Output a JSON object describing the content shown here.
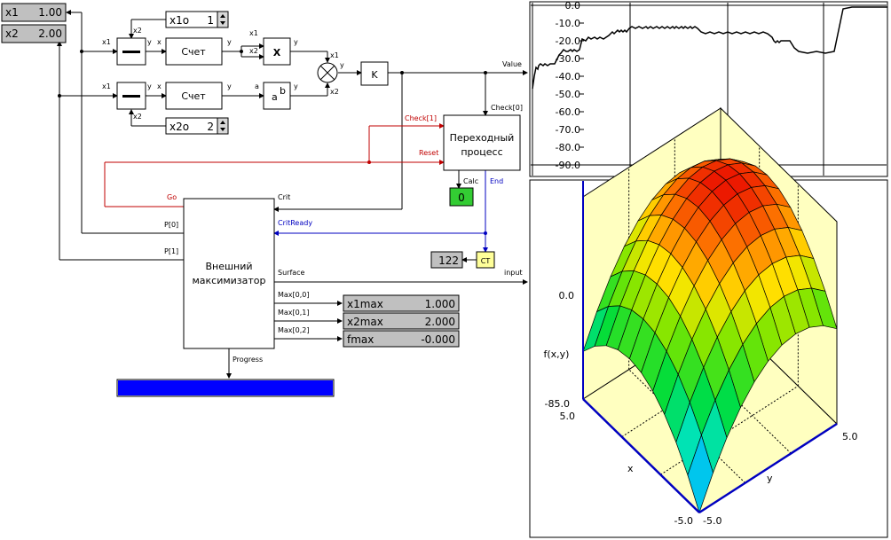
{
  "inputs": [
    {
      "name": "x1",
      "value": "1.00"
    },
    {
      "name": "x2",
      "value": "2.00"
    }
  ],
  "spinners": [
    {
      "name": "x1o",
      "value": "1"
    },
    {
      "name": "x2o",
      "value": "2"
    }
  ],
  "blocks": {
    "count1": "Счет",
    "count2": "Счет",
    "mult": "X",
    "power_base": "a",
    "power_exp": "b",
    "gain": "K",
    "transient_line1": "Переходный",
    "transient_line2": "процесс",
    "maximizer_line1": "Внешний",
    "maximizer_line2": "максимизатор",
    "counter": "CT"
  },
  "ports": {
    "x1": "x1",
    "x2": "x2",
    "x": "x",
    "y": "y",
    "a": "a",
    "value": "Value",
    "check0": "Check[0]",
    "check1": "Check[1]",
    "reset": "Reset",
    "calc": "Calc",
    "end": "End",
    "go": "Go",
    "crit": "Crit",
    "critready": "CritReady",
    "p0": "P[0]",
    "p1": "P[1]",
    "surface": "Surface",
    "input": "input",
    "max00": "Max[0,0]",
    "max01": "Max[0,1]",
    "max02": "Max[0,2]",
    "progress": "Progress"
  },
  "displays": {
    "calc_value": "0",
    "counter_value": "122",
    "x1max_label": "x1max",
    "x1max_value": "1.000",
    "x2max_label": "x2max",
    "x2max_value": "2.000",
    "fmax_label": "fmax",
    "fmax_value": "-0.000"
  },
  "progress": {
    "fraction": 1.0,
    "color": "#0000ff"
  },
  "colors": {
    "red_wire": "#c00000",
    "blue_wire": "#0000c0",
    "display_bg": "#c0c0c0",
    "lamp_green": "#33cc33",
    "counter_yellow": "#ffff99"
  },
  "chart_data": [
    {
      "type": "line",
      "title": "",
      "xlabel": "",
      "ylabel": "",
      "ylim": [
        -90,
        0
      ],
      "y_ticks": [
        "0.0",
        "-10.0",
        "-20.0",
        "-30.0",
        "-40.0",
        "-50.0",
        "-60.0",
        "-70.0",
        "-80.0",
        "-90.0"
      ],
      "grid": true,
      "x": [
        0,
        2,
        4,
        6,
        7,
        9,
        12,
        14,
        17,
        20,
        25,
        30,
        32,
        35,
        38,
        40,
        43,
        45,
        47,
        50,
        53,
        56,
        60,
        63,
        66,
        70,
        73,
        76,
        80,
        83,
        86,
        90,
        92,
        94,
        96,
        98,
        100,
        102,
        104,
        106,
        109,
        112,
        116,
        120,
        124,
        128,
        130,
        133,
        136,
        140,
        143,
        146,
        149,
        152,
        155,
        158,
        160,
        162,
        165,
        168,
        170,
        172,
        175,
        178,
        180,
        183,
        186,
        190,
        195,
        200,
        205,
        210,
        215,
        220,
        225,
        230,
        235,
        240,
        245,
        250,
        255,
        260,
        265,
        270,
        272,
        274,
        276,
        278,
        280,
        285,
        290,
        295,
        300,
        310,
        320,
        330,
        340,
        350,
        360,
        370,
        380,
        390,
        400
      ],
      "values": [
        -47,
        -40,
        -35,
        -36,
        -34,
        -33,
        -34,
        -33,
        -34,
        -33,
        -33,
        -28,
        -27,
        -25,
        -26,
        -26,
        -25,
        -26,
        -25,
        -26,
        -25,
        -19,
        -20,
        -18,
        -19,
        -18,
        -19,
        -18,
        -19,
        -18,
        -17,
        -15,
        -16,
        -15,
        -14,
        -15,
        -14,
        -15,
        -14,
        -15,
        -13,
        -12,
        -13,
        -12,
        -13,
        -12,
        -13,
        -12,
        -13,
        -12,
        -13,
        -12,
        -13,
        -12,
        -13,
        -12,
        -13,
        -12,
        -13,
        -12,
        -13,
        -12,
        -13,
        -12,
        -13,
        -12,
        -13,
        -15,
        -16,
        -15,
        -16,
        -15,
        -16,
        -15,
        -16,
        -15,
        -16,
        -15,
        -16,
        -15,
        -16,
        -15,
        -16,
        -18,
        -20,
        -21,
        -20,
        -21,
        -20,
        -20,
        -20,
        -24,
        -26,
        -27,
        -26,
        -27,
        -26,
        -2,
        -1,
        -1,
        -1,
        -1,
        -1
      ]
    },
    {
      "type": "surface",
      "title": "",
      "xlabel": "x",
      "ylabel": "y",
      "zlabel": "f(x,y)",
      "xlim": [
        -5,
        5
      ],
      "ylim": [
        -5,
        5
      ],
      "zlim": [
        -85,
        0
      ],
      "z_ticks": [
        "0.0",
        "-85.0"
      ],
      "x_ticks": [
        "5.0",
        "-5.0"
      ],
      "y_ticks": [
        "-5.0",
        "5.0"
      ],
      "function": "-((x-1)^2 + (y-2)^2)",
      "grid_n": 10
    }
  ]
}
